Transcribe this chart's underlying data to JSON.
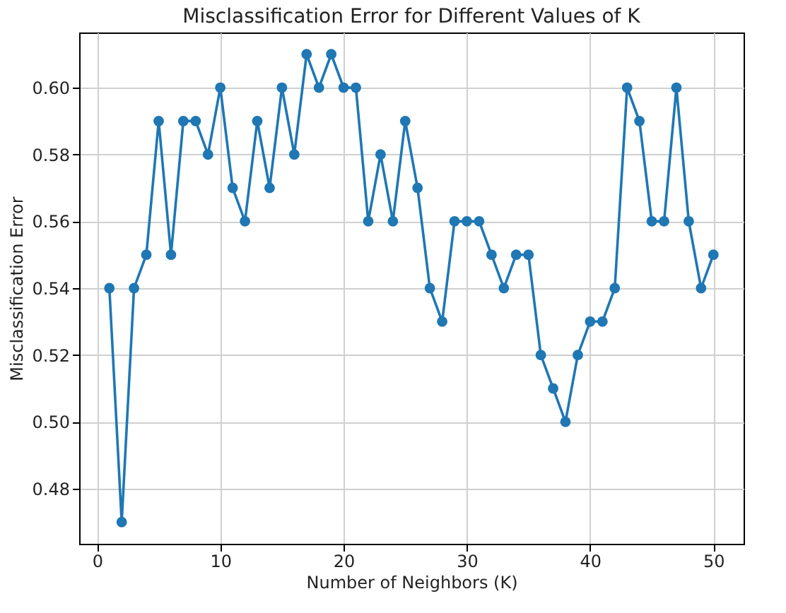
{
  "chart_data": {
    "type": "line",
    "title": "Misclassification Error for Different Values of K",
    "xlabel": "Number of Neighbors (K)",
    "ylabel": "Misclassification Error",
    "x": [
      1,
      2,
      3,
      4,
      5,
      6,
      7,
      8,
      9,
      10,
      11,
      12,
      13,
      14,
      15,
      16,
      17,
      18,
      19,
      20,
      21,
      22,
      23,
      24,
      25,
      26,
      27,
      28,
      29,
      30,
      31,
      32,
      33,
      34,
      35,
      36,
      37,
      38,
      39,
      40,
      41,
      42,
      43,
      44,
      45,
      46,
      47,
      48,
      49,
      50
    ],
    "series": [
      {
        "color": "#1f77b4",
        "values": [
          0.54,
          0.47,
          0.54,
          0.55,
          0.59,
          0.55,
          0.59,
          0.59,
          0.58,
          0.6,
          0.57,
          0.56,
          0.59,
          0.57,
          0.6,
          0.58,
          0.61,
          0.6,
          0.61,
          0.6,
          0.6,
          0.56,
          0.58,
          0.56,
          0.59,
          0.57,
          0.54,
          0.53,
          0.56,
          0.56,
          0.56,
          0.55,
          0.54,
          0.55,
          0.55,
          0.52,
          0.51,
          0.5,
          0.52,
          0.53,
          0.53,
          0.54,
          0.6,
          0.59,
          0.56,
          0.56,
          0.6,
          0.56,
          0.54,
          0.55
        ]
      }
    ],
    "xlim": [
      -1.45,
      52.45
    ],
    "xticks": [
      0,
      10,
      20,
      30,
      40,
      50
    ],
    "ylim": [
      0.4635,
      0.6165
    ],
    "yticks": [
      {
        "value": 0.48,
        "label": "0.48"
      },
      {
        "value": 0.5,
        "label": "0.50"
      },
      {
        "value": 0.52,
        "label": "0.52"
      },
      {
        "value": 0.54,
        "label": "0.54"
      },
      {
        "value": 0.56,
        "label": "0.56"
      },
      {
        "value": 0.58,
        "label": "0.58"
      },
      {
        "value": 0.6,
        "label": "0.60"
      }
    ],
    "grid": true,
    "marker": "circle",
    "line_style": "solid"
  }
}
